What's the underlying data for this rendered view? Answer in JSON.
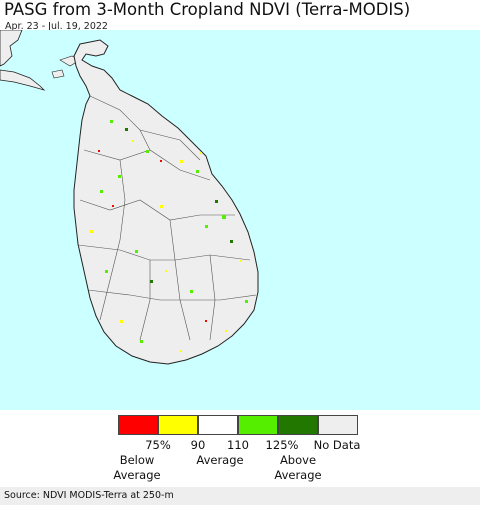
{
  "title": "PASG from 3-Month Cropland NDVI (Terra-MODIS)",
  "date_range": "Apr. 23 - Jul. 19, 2022",
  "colors": {
    "ocean": "#ccffff",
    "land": "#eeeeee",
    "border": "#222222"
  },
  "legend": {
    "bins": [
      {
        "color": "#ff0000",
        "name": "below-75"
      },
      {
        "color": "#ffff00",
        "name": "75-90"
      },
      {
        "color": "#ffffff",
        "name": "90-110"
      },
      {
        "color": "#55ee00",
        "name": "110-125"
      },
      {
        "color": "#227700",
        "name": "above-125"
      },
      {
        "color": "#eeeeee",
        "name": "no-data"
      }
    ],
    "ticks": [
      "75%",
      "90",
      "110",
      "125%",
      "No Data"
    ],
    "captions": {
      "below_1": "Below",
      "below_2": "Average",
      "avg": "Average",
      "above_1": "Above",
      "above_2": "Average"
    }
  },
  "source": "Source: NDVI MODIS-Terra at 250-m"
}
